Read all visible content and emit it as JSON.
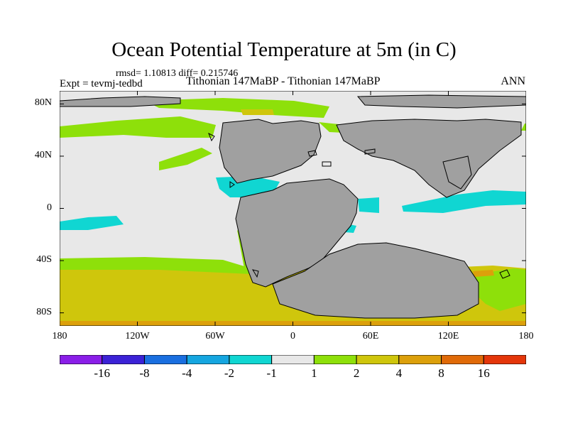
{
  "title": "Ocean Potential Temperature at 5m (in C)",
  "stats": "rmsd= 1.10813 diff= 0.215746",
  "expt": "Expt = tevmj-tedbd",
  "case_name": "Tithonian 147MaBP - Tithonian 147MaBP",
  "season": "ANN",
  "lat_labels": [
    {
      "text": "80N",
      "lat": 80
    },
    {
      "text": "40N",
      "lat": 40
    },
    {
      "text": "0",
      "lat": 0
    },
    {
      "text": "40S",
      "lat": -40
    },
    {
      "text": "80S",
      "lat": -80
    }
  ],
  "lon_labels": [
    {
      "text": "180",
      "lon": -180
    },
    {
      "text": "120W",
      "lon": -120
    },
    {
      "text": "60W",
      "lon": -60
    },
    {
      "text": "0",
      "lon": 0
    },
    {
      "text": "60E",
      "lon": 60
    },
    {
      "text": "120E",
      "lon": 120
    },
    {
      "text": "180",
      "lon": 180
    }
  ],
  "colorbar": {
    "colors": [
      "#8a1ee8",
      "#3b22d6",
      "#1a6fe0",
      "#15a6e0",
      "#10d6d2",
      "#e8e8e8",
      "#8ee00a",
      "#cfc60c",
      "#dca00b",
      "#e06a08",
      "#e4360a"
    ],
    "labels": [
      {
        "text": "-16",
        "index": 1
      },
      {
        "text": "-8",
        "index": 2
      },
      {
        "text": "-4",
        "index": 3
      },
      {
        "text": "-2",
        "index": 4
      },
      {
        "text": "-1",
        "index": 5
      },
      {
        "text": "1",
        "index": 6
      },
      {
        "text": "2",
        "index": 7
      },
      {
        "text": "4",
        "index": 8
      },
      {
        "text": "8",
        "index": 9
      },
      {
        "text": "16",
        "index": 10
      }
    ]
  },
  "map_colors": {
    "land": "#a0a0a0",
    "neutral": "#e8e8e8",
    "cyan": "#10d6d2",
    "green": "#8ee00a",
    "olive": "#cfc60c",
    "orange": "#dca00b"
  }
}
